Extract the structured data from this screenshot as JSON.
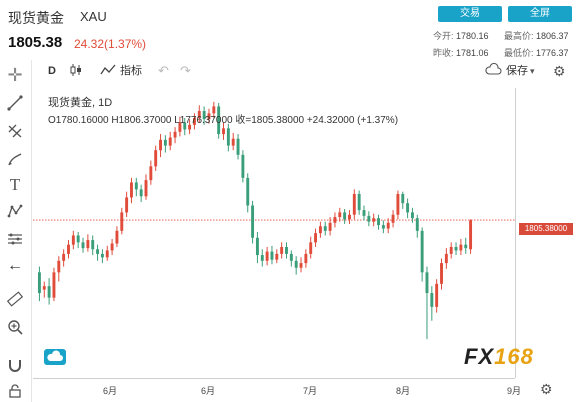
{
  "header": {
    "title": "现货黄金",
    "code": "XAU",
    "trade_button": "交易",
    "fullscreen_button": "全屏",
    "price": "1805.38",
    "change": "24.32(1.37%)",
    "stats": {
      "open_label": "今开:",
      "open_value": "1780.16",
      "high_label": "最高价:",
      "high_value": "1806.37",
      "prev_label": "昨收:",
      "prev_value": "1781.06",
      "low_label": "最低价:",
      "low_value": "1776.37"
    }
  },
  "toolbar": {
    "interval": "D",
    "indicators_label": "指标",
    "save_label": "保存"
  },
  "legend": {
    "symbol_line": "现货黄金, 1D",
    "ohlc": "O1780.16000  H1806.37000  L1776.37000  收=1805.38000  +24.32000 (+1.37%)"
  },
  "price_tag": "1805.38000",
  "x_ticks": [
    "6月",
    "6月",
    "7月",
    "8月",
    "9月"
  ],
  "logo": {
    "text": "FX",
    "num": "168"
  },
  "colors": {
    "up": "#e04b3a",
    "down": "#3a9e7a",
    "accent": "#1aa3c8"
  },
  "chart_data": {
    "type": "candlestick",
    "ylim": [
      1670,
      1920
    ],
    "last_price": 1805.38,
    "candles": [
      [
        1760,
        1742,
        1765,
        1735
      ],
      [
        1745,
        1748,
        1752,
        1738
      ],
      [
        1748,
        1738,
        1755,
        1732
      ],
      [
        1738,
        1760,
        1764,
        1735
      ],
      [
        1760,
        1770,
        1774,
        1752
      ],
      [
        1770,
        1776,
        1780,
        1765
      ],
      [
        1776,
        1784,
        1788,
        1772
      ],
      [
        1784,
        1792,
        1796,
        1780
      ],
      [
        1792,
        1786,
        1795,
        1781
      ],
      [
        1786,
        1781,
        1790,
        1777
      ],
      [
        1781,
        1788,
        1793,
        1778
      ],
      [
        1788,
        1780,
        1792,
        1775
      ],
      [
        1780,
        1776,
        1784,
        1770
      ],
      [
        1776,
        1773,
        1780,
        1768
      ],
      [
        1773,
        1779,
        1783,
        1770
      ],
      [
        1779,
        1785,
        1789,
        1775
      ],
      [
        1785,
        1796,
        1800,
        1782
      ],
      [
        1796,
        1812,
        1816,
        1793
      ],
      [
        1812,
        1825,
        1830,
        1808
      ],
      [
        1825,
        1838,
        1842,
        1820
      ],
      [
        1838,
        1832,
        1842,
        1826
      ],
      [
        1832,
        1826,
        1836,
        1821
      ],
      [
        1826,
        1840,
        1845,
        1823
      ],
      [
        1840,
        1852,
        1857,
        1836
      ],
      [
        1852,
        1866,
        1870,
        1848
      ],
      [
        1866,
        1875,
        1880,
        1860
      ],
      [
        1875,
        1870,
        1879,
        1864
      ],
      [
        1870,
        1877,
        1882,
        1866
      ],
      [
        1877,
        1882,
        1886,
        1872
      ],
      [
        1882,
        1890,
        1895,
        1878
      ],
      [
        1890,
        1884,
        1894,
        1879
      ],
      [
        1884,
        1888,
        1893,
        1880
      ],
      [
        1888,
        1894,
        1898,
        1884
      ],
      [
        1894,
        1900,
        1905,
        1890
      ],
      [
        1900,
        1893,
        1904,
        1888
      ],
      [
        1893,
        1898,
        1902,
        1889
      ],
      [
        1898,
        1904,
        1908,
        1894
      ],
      [
        1904,
        1880,
        1907,
        1876
      ],
      [
        1880,
        1885,
        1890,
        1875
      ],
      [
        1885,
        1870,
        1889,
        1865
      ],
      [
        1870,
        1876,
        1881,
        1866
      ],
      [
        1876,
        1862,
        1880,
        1858
      ],
      [
        1862,
        1842,
        1866,
        1838
      ],
      [
        1842,
        1818,
        1846,
        1812
      ],
      [
        1818,
        1790,
        1822,
        1785
      ],
      [
        1790,
        1775,
        1795,
        1768
      ],
      [
        1775,
        1770,
        1780,
        1765
      ],
      [
        1770,
        1778,
        1782,
        1766
      ],
      [
        1778,
        1771,
        1783,
        1767
      ],
      [
        1771,
        1776,
        1780,
        1768
      ],
      [
        1776,
        1782,
        1786,
        1772
      ],
      [
        1782,
        1776,
        1786,
        1772
      ],
      [
        1776,
        1770,
        1779,
        1765
      ],
      [
        1770,
        1764,
        1774,
        1758
      ],
      [
        1764,
        1768,
        1773,
        1760
      ],
      [
        1768,
        1776,
        1780,
        1764
      ],
      [
        1776,
        1786,
        1791,
        1772
      ],
      [
        1786,
        1794,
        1798,
        1782
      ],
      [
        1794,
        1800,
        1804,
        1790
      ],
      [
        1800,
        1796,
        1804,
        1792
      ],
      [
        1796,
        1803,
        1808,
        1792
      ],
      [
        1803,
        1808,
        1812,
        1799
      ],
      [
        1808,
        1812,
        1816,
        1804
      ],
      [
        1812,
        1806,
        1815,
        1802
      ],
      [
        1806,
        1810,
        1814,
        1802
      ],
      [
        1810,
        1828,
        1832,
        1806
      ],
      [
        1828,
        1814,
        1831,
        1810
      ],
      [
        1814,
        1809,
        1818,
        1805
      ],
      [
        1809,
        1804,
        1813,
        1800
      ],
      [
        1804,
        1807,
        1811,
        1800
      ],
      [
        1807,
        1801,
        1810,
        1797
      ],
      [
        1801,
        1798,
        1805,
        1794
      ],
      [
        1798,
        1803,
        1807,
        1794
      ],
      [
        1803,
        1810,
        1814,
        1799
      ],
      [
        1810,
        1828,
        1831,
        1806
      ],
      [
        1828,
        1820,
        1830,
        1815
      ],
      [
        1820,
        1812,
        1824,
        1807
      ],
      [
        1812,
        1807,
        1816,
        1803
      ],
      [
        1807,
        1796,
        1810,
        1790
      ],
      [
        1796,
        1760,
        1799,
        1752
      ],
      [
        1760,
        1742,
        1765,
        1702
      ],
      [
        1742,
        1730,
        1748,
        1718
      ],
      [
        1730,
        1750,
        1754,
        1725
      ],
      [
        1750,
        1768,
        1772,
        1745
      ],
      [
        1768,
        1776,
        1781,
        1763
      ],
      [
        1776,
        1782,
        1786,
        1772
      ],
      [
        1782,
        1779,
        1786,
        1775
      ],
      [
        1779,
        1784,
        1789,
        1775
      ],
      [
        1784,
        1781,
        1790,
        1776
      ],
      [
        1780,
        1805,
        1806,
        1776
      ]
    ]
  }
}
